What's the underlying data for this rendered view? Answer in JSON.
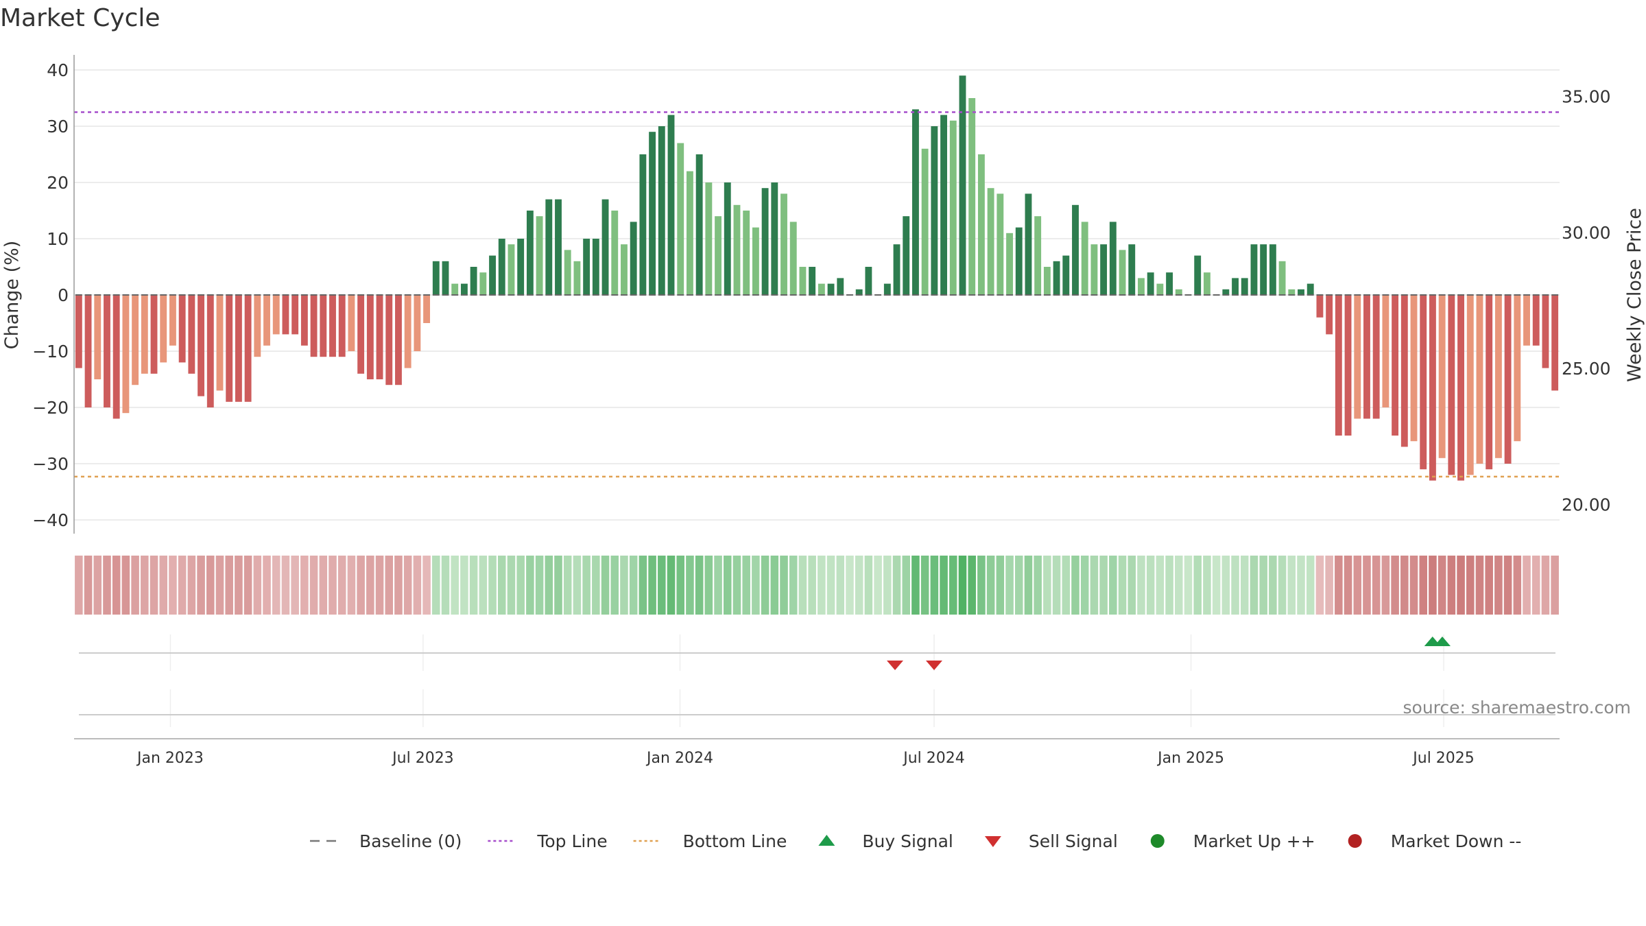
{
  "chart_data": {
    "type": "bar",
    "title": "Market Cycle",
    "ylabel_left": "Change (%)",
    "ylabel_right": "Weekly Close Price",
    "source": "source: sharemaestro.com",
    "ylim_left": [
      -40,
      40
    ],
    "yticks_left": [
      "40",
      "30",
      "20",
      "10",
      "0",
      "−10",
      "−20",
      "−30",
      "−40"
    ],
    "yticks_left_values": [
      40,
      30,
      20,
      10,
      0,
      -10,
      -20,
      -30,
      -40
    ],
    "yticks_right": [
      "35.00",
      "30.00",
      "25.00",
      "20.00"
    ],
    "yticks_right_values": [
      35,
      30,
      25,
      20
    ],
    "right_scale": {
      "value_at_bottom_line": 20,
      "value_at_top_line": 35,
      "left_at_bottom_line": -36.3,
      "left_at_top_line": 36.3
    },
    "top_line": 32.5,
    "bottom_line": -32.3,
    "x_start": "2022-10-24",
    "x_end": "2025-09-22",
    "x_ticks": [
      {
        "label": "Jan 2023",
        "date": "2023-01-01"
      },
      {
        "label": "Jul 2023",
        "date": "2023-07-01"
      },
      {
        "label": "Jan 2024",
        "date": "2024-01-01"
      },
      {
        "label": "Jul 2024",
        "date": "2024-07-01"
      },
      {
        "label": "Jan 2025",
        "date": "2025-01-01"
      },
      {
        "label": "Jul 2025",
        "date": "2025-07-01"
      }
    ],
    "bar_dates_first": "2022-10-24",
    "bar_interval_days": 7,
    "values": [
      -13,
      -20,
      -15,
      -20,
      -22,
      -21,
      -16,
      -14,
      -14,
      -12,
      -9,
      -12,
      -14,
      -18,
      -20,
      -17,
      -19,
      -19,
      -19,
      -11,
      -9,
      -7,
      -7,
      -7,
      -9,
      -11,
      -11,
      -11,
      -11,
      -10,
      -14,
      -15,
      -15,
      -16,
      -16,
      -13,
      -10,
      -5,
      6,
      6,
      2,
      2,
      5,
      4,
      7,
      10,
      9,
      10,
      15,
      14,
      17,
      17,
      8,
      6,
      10,
      10,
      17,
      15,
      9,
      13,
      25,
      29,
      30,
      32,
      27,
      22,
      25,
      20,
      14,
      20,
      16,
      15,
      12,
      19,
      20,
      18,
      13,
      5,
      5,
      2,
      2,
      3,
      0,
      1,
      5,
      0,
      2,
      9,
      14,
      33,
      26,
      30,
      32,
      31,
      39,
      35,
      25,
      19,
      18,
      11,
      12,
      18,
      14,
      5,
      6,
      7,
      16,
      13,
      9,
      9,
      13,
      8,
      9,
      3,
      4,
      2,
      4,
      1,
      0,
      7,
      4,
      0,
      1,
      3,
      3,
      9,
      9,
      9,
      6,
      1,
      1,
      2,
      -4,
      -7,
      -25,
      -25,
      -22,
      -22,
      -22,
      -20,
      -25,
      -27,
      -26,
      -31,
      -33,
      -29,
      -32,
      -33,
      -32,
      -30,
      -31,
      -29,
      -30,
      -26,
      -9,
      -9,
      -13,
      -17
    ],
    "bar_colors": {
      "strong_up": "#2e7d4f",
      "weak_up": "#7fbf7f",
      "strong_down": "#cd5c5c",
      "weak_down": "#e8967a"
    },
    "band_colors": {
      "dark_green": "#4caf60",
      "light_green": "#c8e6c9",
      "dark_red": "#c66e6e",
      "light_red": "#eac4c4"
    },
    "signals": {
      "buy": [
        "2025-06-23",
        "2025-06-30"
      ],
      "sell": [
        "2024-06-03",
        "2024-07-01"
      ]
    },
    "series": [
      {
        "name": "Baseline (0)",
        "style": "dashed",
        "color": "#777777",
        "value": 0
      },
      {
        "name": "Top Line",
        "style": "dotted",
        "color": "#a64dcc",
        "value": 32.5
      },
      {
        "name": "Bottom Line",
        "style": "dotted",
        "color": "#e0a050",
        "value": -32.3
      }
    ],
    "legend_position": "bottom",
    "legend": [
      {
        "label": "Baseline (0)",
        "kind": "dash",
        "color": "#777777"
      },
      {
        "label": "Top Line",
        "kind": "dot",
        "color": "#a64dcc"
      },
      {
        "label": "Bottom Line",
        "kind": "dot",
        "color": "#e0a050"
      },
      {
        "label": "Buy Signal",
        "kind": "up",
        "color": "#1e9b4a"
      },
      {
        "label": "Sell Signal",
        "kind": "down",
        "color": "#d03030"
      },
      {
        "label": "Market Up ++",
        "kind": "circle",
        "color": "#1e8a2a"
      },
      {
        "label": "Market Down --",
        "kind": "circle",
        "color": "#b22222"
      }
    ],
    "grid": true
  }
}
